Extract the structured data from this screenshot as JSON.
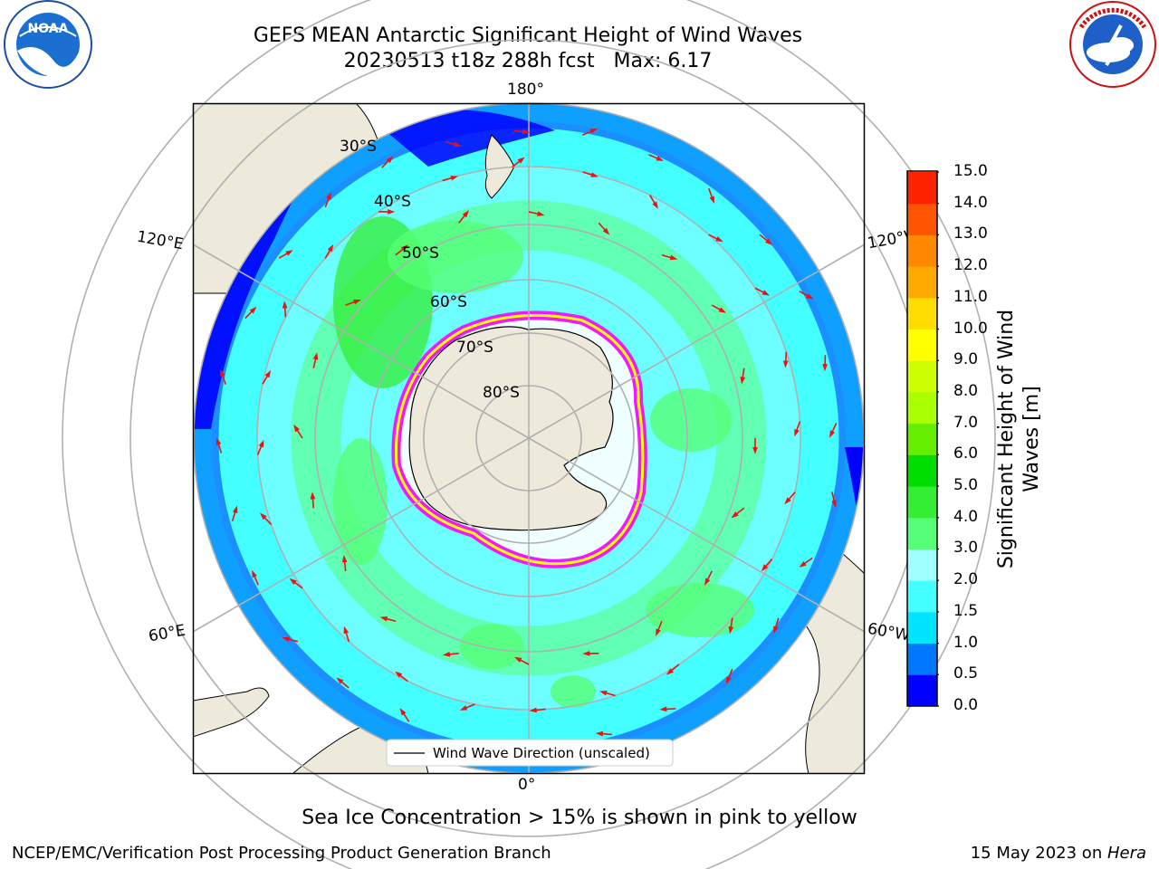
{
  "title_line1": "GEFS MEAN Antarctic Significant Height of Wind Waves",
  "title_line2": "20230513 t18z 288h fcst   Max: 6.17",
  "logos": {
    "left": "noaa-logo",
    "right": "nws-logo"
  },
  "map": {
    "longitude_labels": {
      "top": "180°",
      "bottom": "0°",
      "left_upper": "120°E",
      "left_lower": "60°E",
      "right_upper": "120°W",
      "right_lower": "60°W"
    },
    "latitude_labels": [
      "30°S",
      "40°S",
      "50°S",
      "60°S",
      "70°S",
      "80°S"
    ],
    "legend_label": "Wind Wave Direction (unscaled)",
    "land_color": "#eeeadb",
    "ice_colors": [
      "#ff00ff",
      "#ffff00"
    ]
  },
  "colorbar": {
    "label_line1": "Significant Height of Wind",
    "label_line2": "Waves [m]",
    "ticks": [
      "0.0",
      "0.5",
      "1.0",
      "1.5",
      "2.0",
      "3.0",
      "4.0",
      "5.0",
      "6.0",
      "7.0",
      "8.0",
      "9.0",
      "10.0",
      "11.0",
      "12.0",
      "13.0",
      "14.0",
      "15.0"
    ],
    "colors": [
      "#0000ff",
      "#0077ff",
      "#00e5ff",
      "#44ffff",
      "#a0ffff",
      "#55ff77",
      "#33ee33",
      "#00dd00",
      "#66ee00",
      "#aaff00",
      "#ccff00",
      "#ffff00",
      "#ffdd00",
      "#ffaa00",
      "#ff8800",
      "#ff5500",
      "#ff2200"
    ]
  },
  "caption": "Sea Ice Concentration > 15% is shown in pink to yellow",
  "footer_left": "NCEP/EMC/Verification Post Processing Product Generation Branch",
  "footer_right_prefix": "15 May 2023 on ",
  "footer_right_host": "Hera"
}
